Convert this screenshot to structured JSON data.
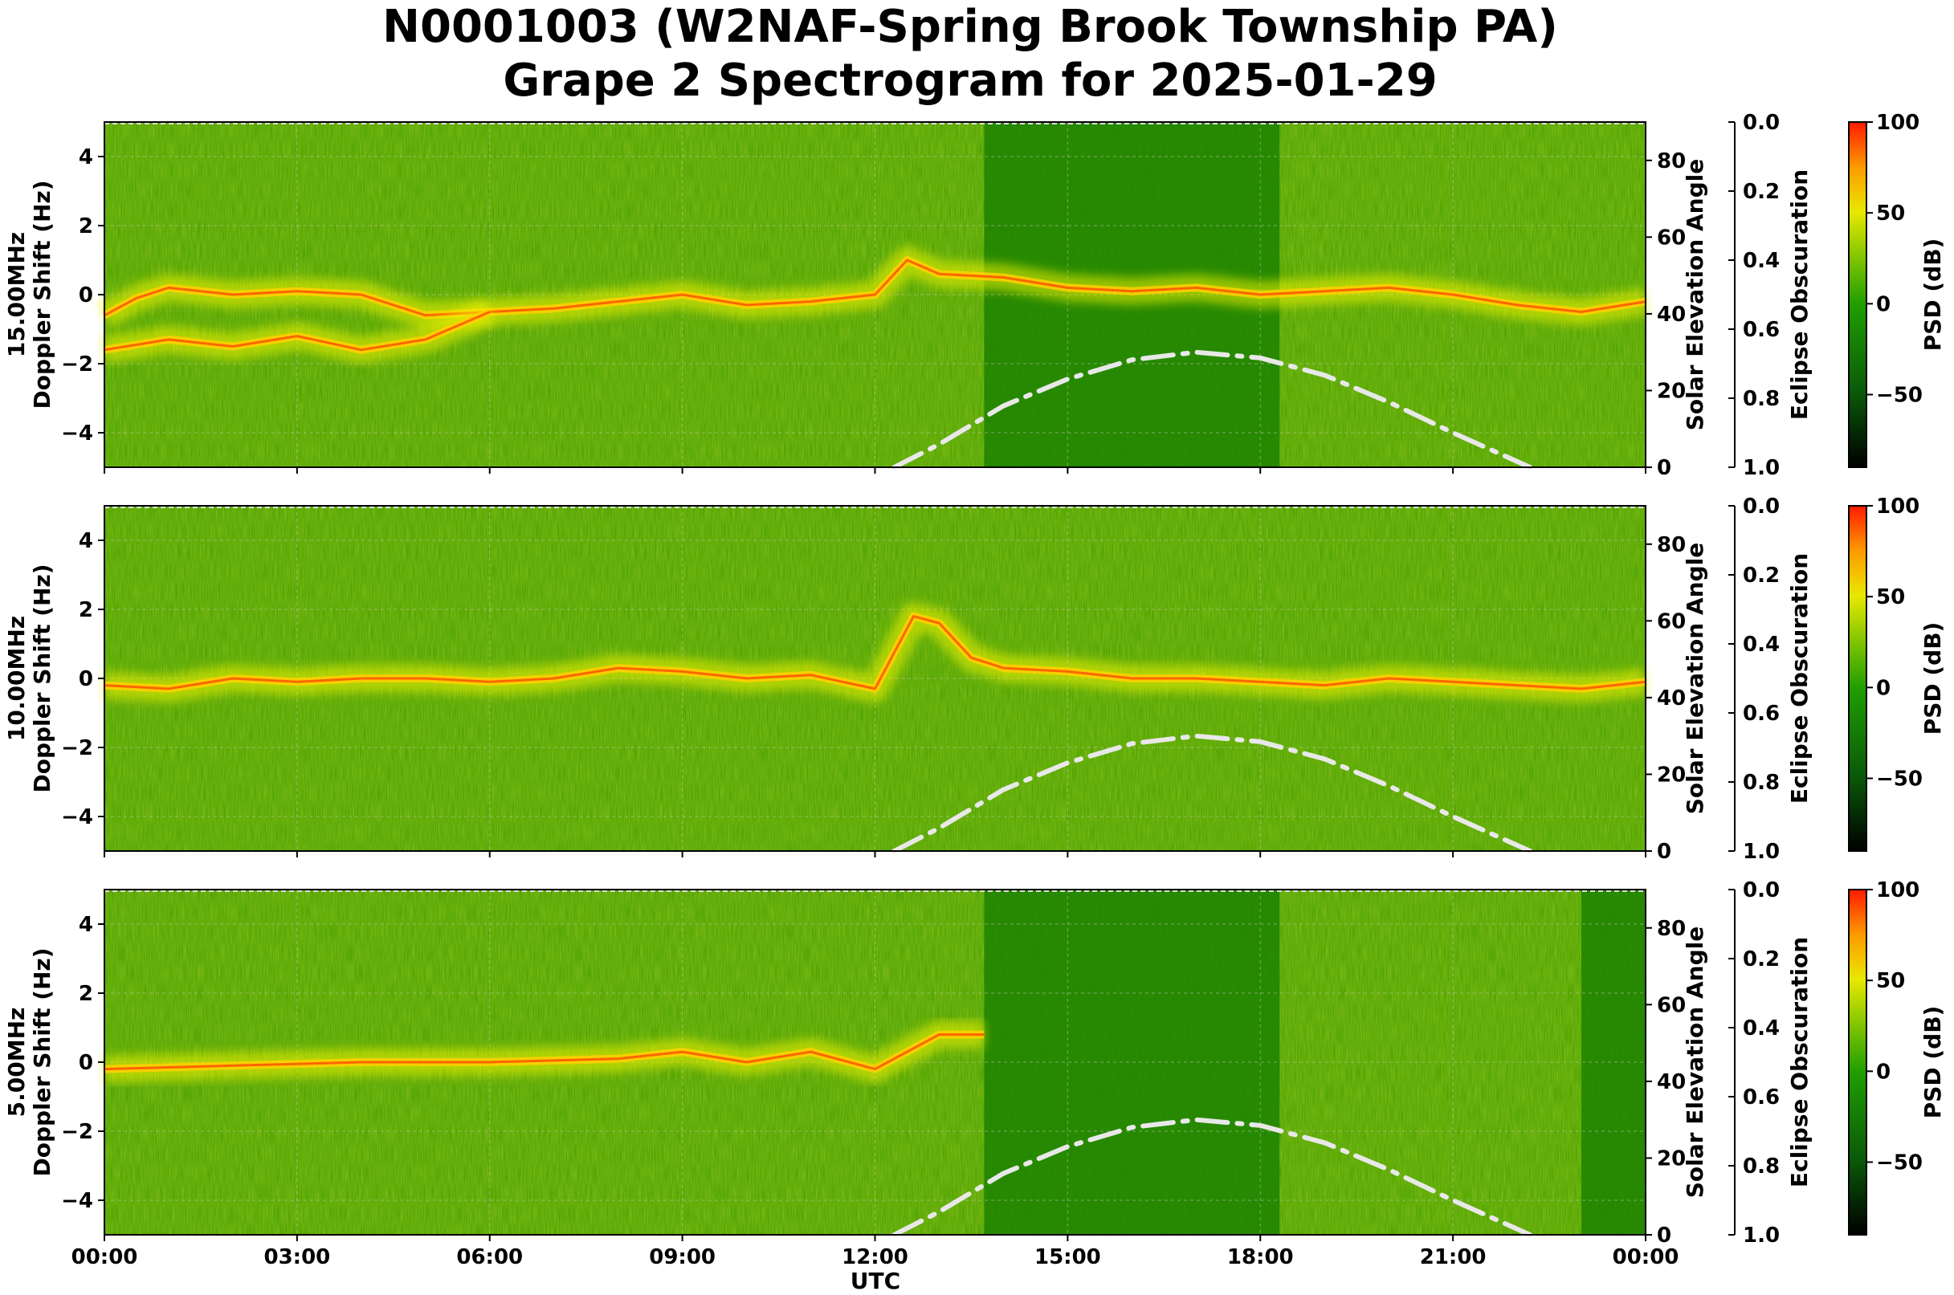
{
  "chart_data": {
    "type": "heatmap",
    "title_line1": "N0001003 (W2NAF-Spring Brook Township PA)",
    "title_line2": "Grape 2 Spectrogram for 2025-01-29",
    "xlabel": "UTC",
    "x_ticks": [
      "00:00",
      "03:00",
      "06:00",
      "09:00",
      "12:00",
      "15:00",
      "18:00",
      "21:00",
      "00:00"
    ],
    "x_range_hours": [
      0,
      24
    ],
    "y_range": [
      -5,
      5
    ],
    "y_ticks": [
      4,
      2,
      0,
      -2,
      -4
    ],
    "y_tick_labels": [
      "4",
      "2",
      "0",
      "−2",
      "−4"
    ],
    "elevation_label": "Solar Elevation Angle",
    "elevation_range": [
      0,
      90
    ],
    "elevation_ticks": [
      "80",
      "60",
      "40",
      "20",
      "0"
    ],
    "elevation_tick_values": [
      80,
      60,
      40,
      20,
      0
    ],
    "obscuration_label": "Eclipse Obscuration",
    "obscuration_ticks": [
      "0.0",
      "0.2",
      "0.4",
      "0.6",
      "0.8",
      "1.0"
    ],
    "obscuration_tick_values": [
      0,
      0.2,
      0.4,
      0.6,
      0.8,
      1.0
    ],
    "colorbar_label": "PSD (dB)",
    "colorbar_range": [
      -90,
      100
    ],
    "colorbar_ticks": [
      "100",
      "50",
      "0",
      "−50"
    ],
    "colorbar_tick_values": [
      100,
      50,
      0,
      -50
    ],
    "colors": {
      "line": "#e8e8e8",
      "grid": "#cccccc"
    },
    "panels": [
      {
        "freq_label": "15.00MHz",
        "ylabel": "Doppler Shift (Hz)",
        "trace": [
          [
            0,
            -0.6
          ],
          [
            0.5,
            -0.1
          ],
          [
            1,
            0.2
          ],
          [
            2,
            0
          ],
          [
            3,
            0.1
          ],
          [
            4,
            0
          ],
          [
            5,
            -0.6
          ],
          [
            6,
            -0.5
          ],
          [
            7,
            -0.4
          ],
          [
            8,
            -0.2
          ],
          [
            9,
            0
          ],
          [
            10,
            -0.3
          ],
          [
            11,
            -0.2
          ],
          [
            12,
            0
          ],
          [
            12.5,
            1
          ],
          [
            13,
            0.6
          ],
          [
            14,
            0.5
          ],
          [
            15,
            0.2
          ],
          [
            16,
            0.1
          ],
          [
            17,
            0.2
          ],
          [
            18,
            0
          ],
          [
            19,
            0.1
          ],
          [
            20,
            0.2
          ],
          [
            21,
            0
          ],
          [
            22,
            -0.3
          ],
          [
            23,
            -0.5
          ],
          [
            24,
            -0.2
          ]
        ],
        "trace2": [
          [
            0,
            -1.6
          ],
          [
            1,
            -1.3
          ],
          [
            2,
            -1.5
          ],
          [
            3,
            -1.2
          ],
          [
            4,
            -1.6
          ],
          [
            5,
            -1.3
          ],
          [
            6,
            -0.5
          ]
        ],
        "solar_elevation": [
          [
            12.3,
            0
          ],
          [
            13,
            6
          ],
          [
            14,
            16
          ],
          [
            15,
            23
          ],
          [
            16,
            28
          ],
          [
            17,
            30
          ],
          [
            18,
            28.5
          ],
          [
            19,
            24
          ],
          [
            20,
            17
          ],
          [
            21,
            9
          ],
          [
            22.2,
            0
          ]
        ],
        "quiet_blocks": [
          [
            13.7,
            18.3
          ]
        ]
      },
      {
        "freq_label": "10.00MHz",
        "ylabel": "Doppler Shift (Hz)",
        "trace": [
          [
            0,
            -0.2
          ],
          [
            1,
            -0.3
          ],
          [
            2,
            0
          ],
          [
            3,
            -0.1
          ],
          [
            4,
            0
          ],
          [
            5,
            0
          ],
          [
            6,
            -0.1
          ],
          [
            7,
            0
          ],
          [
            8,
            0.3
          ],
          [
            9,
            0.2
          ],
          [
            10,
            0
          ],
          [
            11,
            0.1
          ],
          [
            12,
            -0.3
          ],
          [
            12.6,
            1.8
          ],
          [
            13,
            1.6
          ],
          [
            13.5,
            0.6
          ],
          [
            14,
            0.3
          ],
          [
            15,
            0.2
          ],
          [
            16,
            0
          ],
          [
            17,
            0
          ],
          [
            18,
            -0.1
          ],
          [
            19,
            -0.2
          ],
          [
            20,
            0
          ],
          [
            21,
            -0.1
          ],
          [
            22,
            -0.2
          ],
          [
            23,
            -0.3
          ],
          [
            24,
            -0.1
          ]
        ],
        "trace2": [],
        "solar_elevation": [
          [
            12.3,
            0
          ],
          [
            13,
            6
          ],
          [
            14,
            16
          ],
          [
            15,
            23
          ],
          [
            16,
            28
          ],
          [
            17,
            30
          ],
          [
            18,
            28.5
          ],
          [
            19,
            24
          ],
          [
            20,
            17
          ],
          [
            21,
            9
          ],
          [
            22.2,
            0
          ]
        ],
        "quiet_blocks": []
      },
      {
        "freq_label": "5.00MHz",
        "ylabel": "Doppler Shift (Hz)",
        "trace": [
          [
            0,
            -0.2
          ],
          [
            2,
            -0.1
          ],
          [
            4,
            0
          ],
          [
            6,
            0
          ],
          [
            8,
            0.1
          ],
          [
            9,
            0.3
          ],
          [
            10,
            0
          ],
          [
            11,
            0.3
          ],
          [
            12,
            -0.2
          ],
          [
            13,
            0.8
          ],
          [
            13.7,
            0.8
          ]
        ],
        "trace2": [],
        "solar_elevation": [
          [
            12.3,
            0
          ],
          [
            13,
            6
          ],
          [
            14,
            16
          ],
          [
            15,
            23
          ],
          [
            16,
            28
          ],
          [
            17,
            30
          ],
          [
            18,
            28.5
          ],
          [
            19,
            24
          ],
          [
            20,
            17
          ],
          [
            21,
            9
          ],
          [
            22.2,
            0
          ]
        ],
        "quiet_blocks": [
          [
            13.7,
            18.3
          ],
          [
            23,
            24
          ]
        ]
      }
    ]
  }
}
